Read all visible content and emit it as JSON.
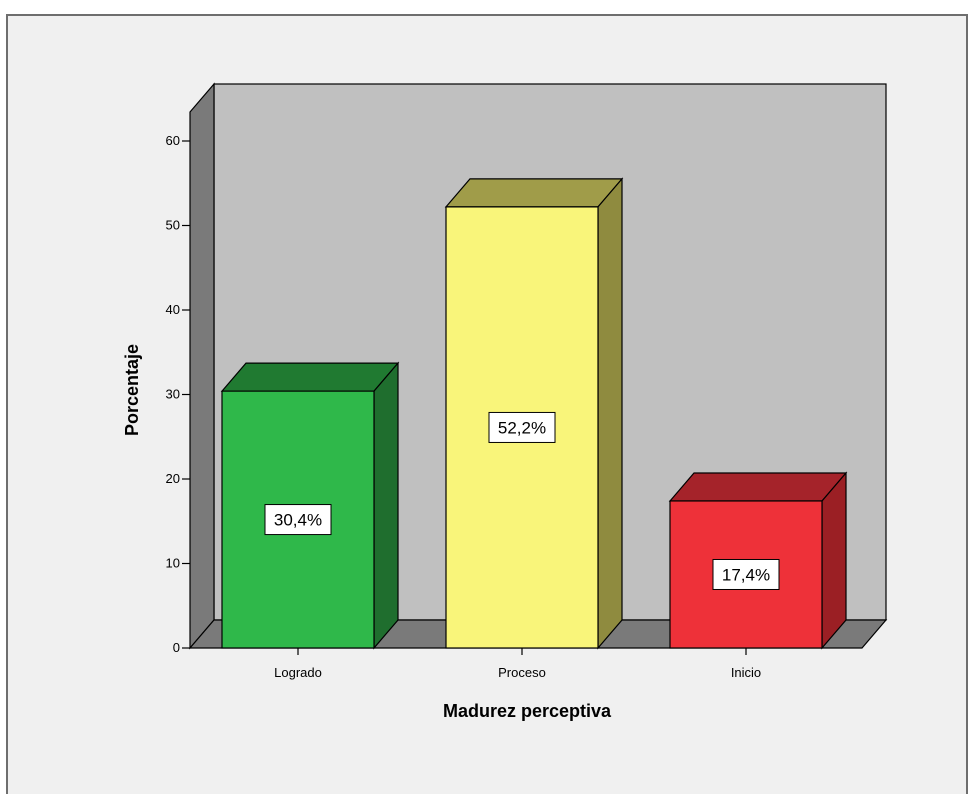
{
  "chart_data": {
    "type": "bar",
    "style": "3d",
    "categories": [
      "Logrado",
      "Proceso",
      "Inicio"
    ],
    "values": [
      30.4,
      52.2,
      17.4
    ],
    "data_labels": [
      "30,4%",
      "52,2%",
      "17,4%"
    ],
    "xlabel": "Madurez perceptiva",
    "ylabel": "Porcentaje",
    "ylim": [
      0,
      60
    ],
    "yticks": [
      0,
      10,
      20,
      30,
      40,
      50,
      60
    ],
    "grid": false,
    "legend": "none",
    "colors": {
      "bars_front": [
        "#2fb84a",
        "#f9f57a",
        "#ee3139"
      ],
      "bars_side": [
        "#1f6e2e",
        "#8f8b3f",
        "#9b1f24"
      ],
      "bars_top": [
        "#207a31",
        "#a09c49",
        "#a5232a"
      ],
      "back_wall": "#c0c0c0",
      "side_wall": "#7a7a7a",
      "floor": "#7a7a7a",
      "background": "#f0f0f0"
    }
  }
}
